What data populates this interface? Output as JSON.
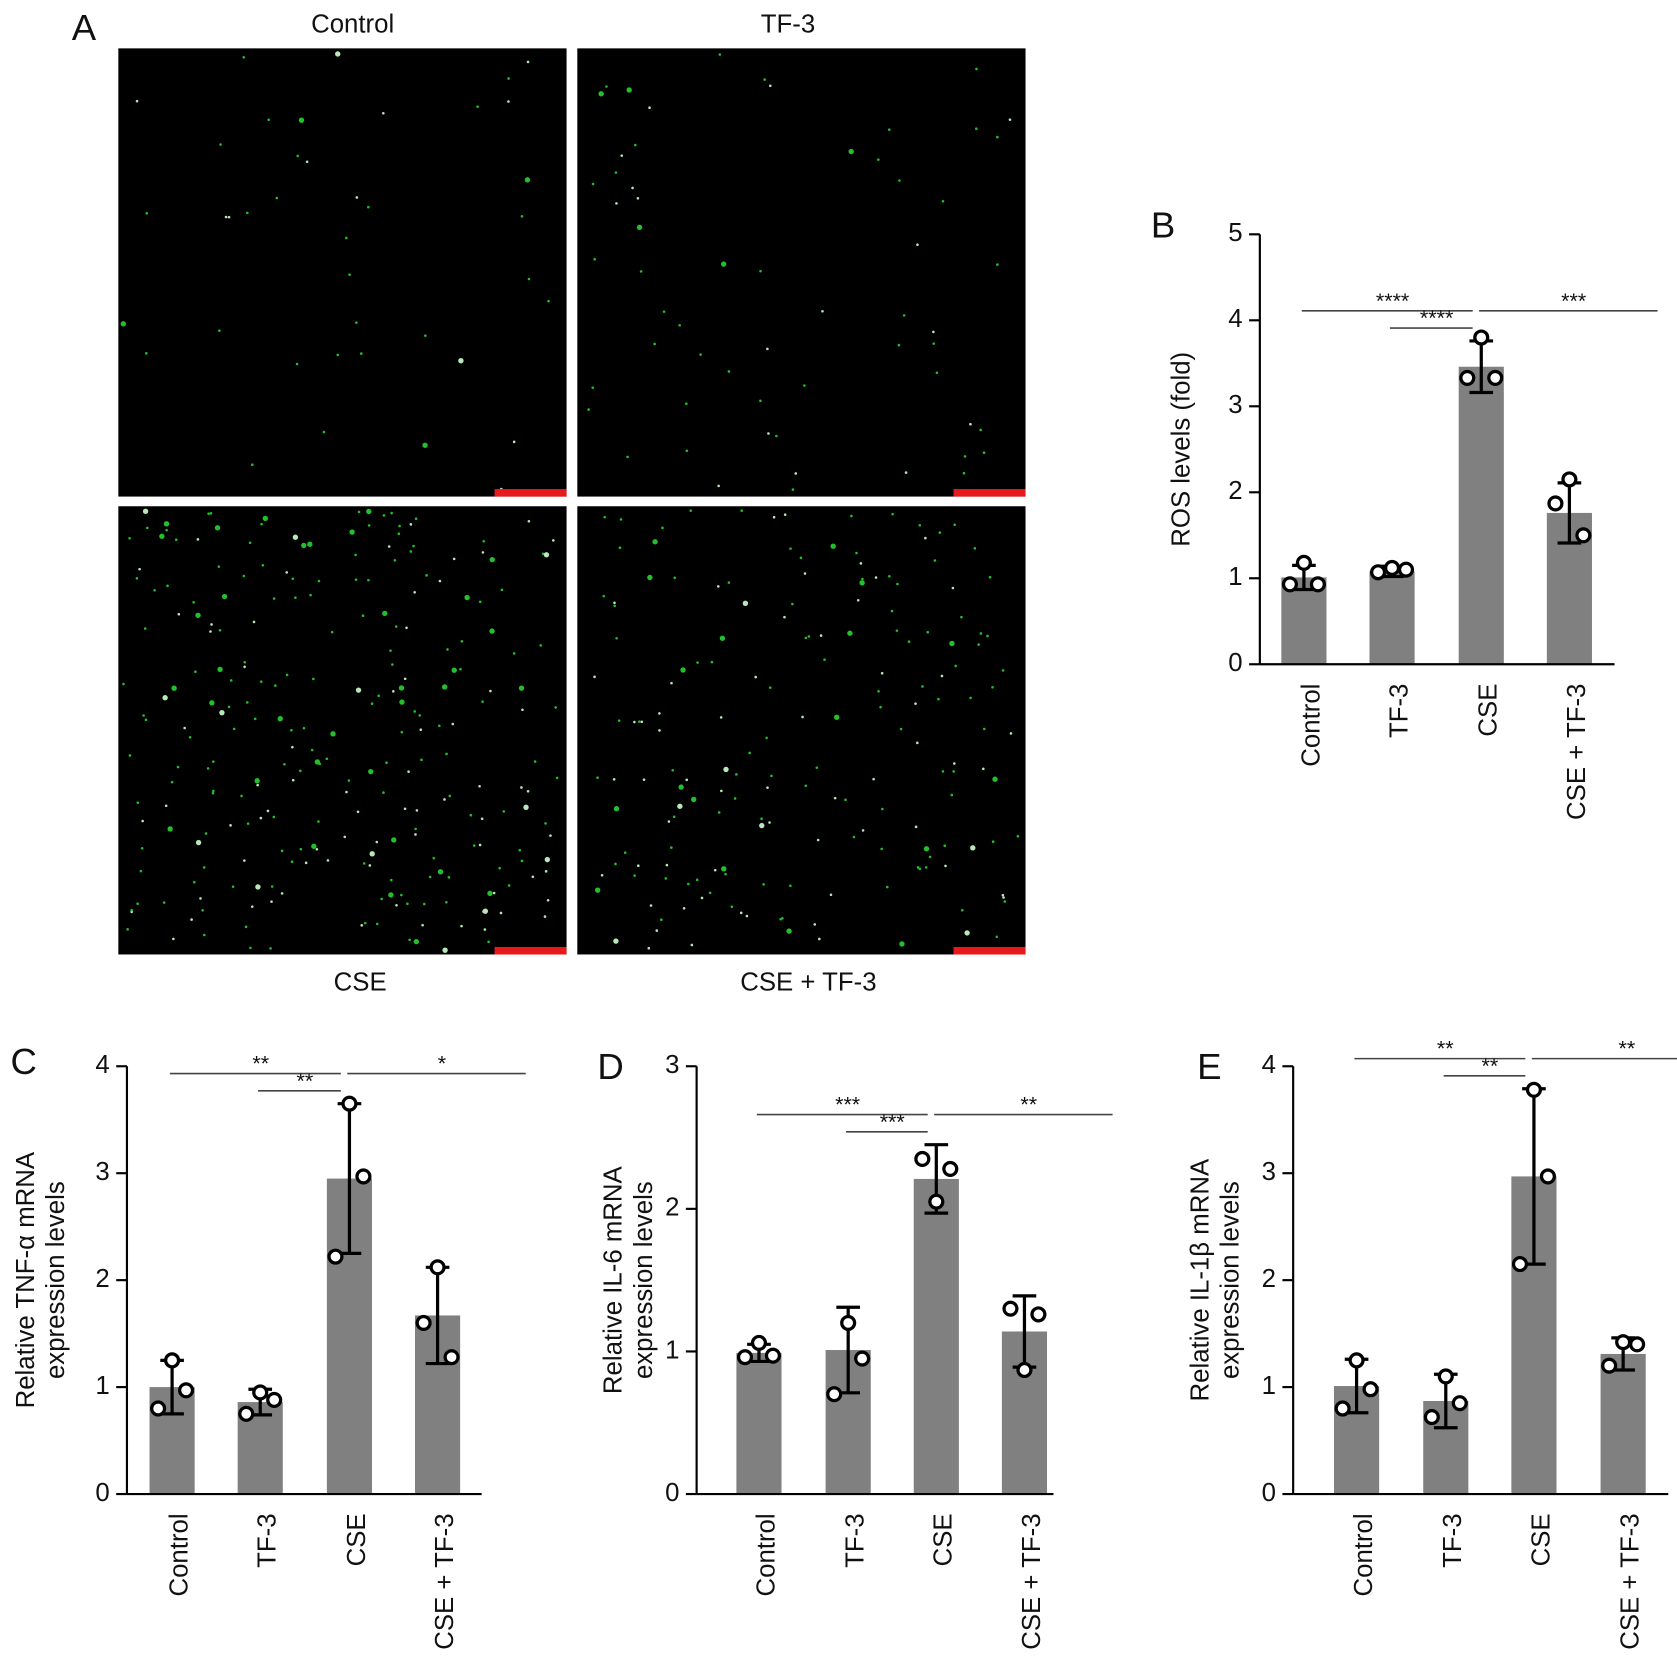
{
  "panel_a": {
    "label": "A",
    "titles": [
      "Control",
      "TF-3",
      "CSE",
      "CSE + TF-3"
    ]
  },
  "chart_data": [
    {
      "type": "bar",
      "panel": "B",
      "ylabel": [
        "ROS levels (fold)"
      ],
      "categories": [
        "Control",
        "TF-3",
        "CSE",
        "CSE + TF-3"
      ],
      "values": [
        1.01,
        1.08,
        3.46,
        1.76
      ],
      "errors": [
        0.14,
        0.06,
        0.3,
        0.35
      ],
      "points": [
        [
          0.93,
          1.18,
          0.93
        ],
        [
          1.07,
          1.12,
          1.1
        ],
        [
          3.33,
          3.8,
          3.33
        ],
        [
          1.87,
          2.15,
          1.5
        ]
      ],
      "color": "#808080",
      "ylim": [
        0,
        5
      ],
      "yticks": [
        0,
        1,
        2,
        3,
        4,
        5
      ],
      "brackets": [
        {
          "from": 0,
          "to": 2,
          "label": "****"
        },
        {
          "from": 1,
          "to": 2,
          "label": "****"
        },
        {
          "from": 2,
          "to": 3,
          "label": "***"
        }
      ]
    },
    {
      "type": "bar",
      "panel": "C",
      "ylabel": [
        "Relative TNF-α mRNA",
        "expression levels"
      ],
      "categories": [
        "Control",
        "TF-3",
        "CSE",
        "CSE + TF-3"
      ],
      "values": [
        1.0,
        0.86,
        2.95,
        1.67
      ],
      "errors": [
        0.25,
        0.12,
        0.7,
        0.45
      ],
      "points": [
        [
          0.8,
          1.25,
          0.97
        ],
        [
          0.75,
          0.95,
          0.88
        ],
        [
          2.22,
          3.65,
          2.97
        ],
        [
          1.6,
          2.12,
          1.28
        ]
      ],
      "color": "#808080",
      "ylim": [
        0,
        4
      ],
      "yticks": [
        0,
        1,
        2,
        3,
        4
      ],
      "brackets": [
        {
          "from": 0,
          "to": 2,
          "label": "**"
        },
        {
          "from": 1,
          "to": 2,
          "label": "**"
        },
        {
          "from": 2,
          "to": 3,
          "label": "*"
        }
      ]
    },
    {
      "type": "bar",
      "panel": "D",
      "ylabel": [
        "Relative IL-6 mRNA",
        "expression levels"
      ],
      "categories": [
        "Control",
        "TF-3",
        "CSE",
        "CSE + TF-3"
      ],
      "values": [
        0.99,
        1.01,
        2.21,
        1.14
      ],
      "errors": [
        0.06,
        0.3,
        0.24,
        0.25
      ],
      "points": [
        [
          0.96,
          1.06,
          0.97
        ],
        [
          0.7,
          1.2,
          0.95
        ],
        [
          2.35,
          2.05,
          2.28
        ],
        [
          1.3,
          0.87,
          1.26
        ]
      ],
      "color": "#808080",
      "ylim": [
        0,
        3
      ],
      "yticks": [
        0,
        1,
        2,
        3
      ],
      "brackets": [
        {
          "from": 0,
          "to": 2,
          "label": "***"
        },
        {
          "from": 1,
          "to": 2,
          "label": "***"
        },
        {
          "from": 2,
          "to": 3,
          "label": "**"
        }
      ]
    },
    {
      "type": "bar",
      "panel": "E",
      "ylabel": [
        "Relative IL-1β mRNA",
        "expression levels"
      ],
      "categories": [
        "Control",
        "TF-3",
        "CSE",
        "CSE + TF-3"
      ],
      "values": [
        1.01,
        0.87,
        2.97,
        1.31
      ],
      "errors": [
        0.25,
        0.25,
        0.82,
        0.15
      ],
      "points": [
        [
          0.8,
          1.25,
          0.98
        ],
        [
          0.72,
          1.1,
          0.85
        ],
        [
          2.15,
          3.78,
          2.97
        ],
        [
          1.2,
          1.42,
          1.4
        ]
      ],
      "color": "#808080",
      "ylim": [
        0,
        4
      ],
      "yticks": [
        0,
        1,
        2,
        3,
        4
      ],
      "brackets": [
        {
          "from": 0,
          "to": 2,
          "label": "**"
        },
        {
          "from": 1,
          "to": 2,
          "label": "**"
        },
        {
          "from": 2,
          "to": 3,
          "label": "**"
        }
      ]
    }
  ]
}
